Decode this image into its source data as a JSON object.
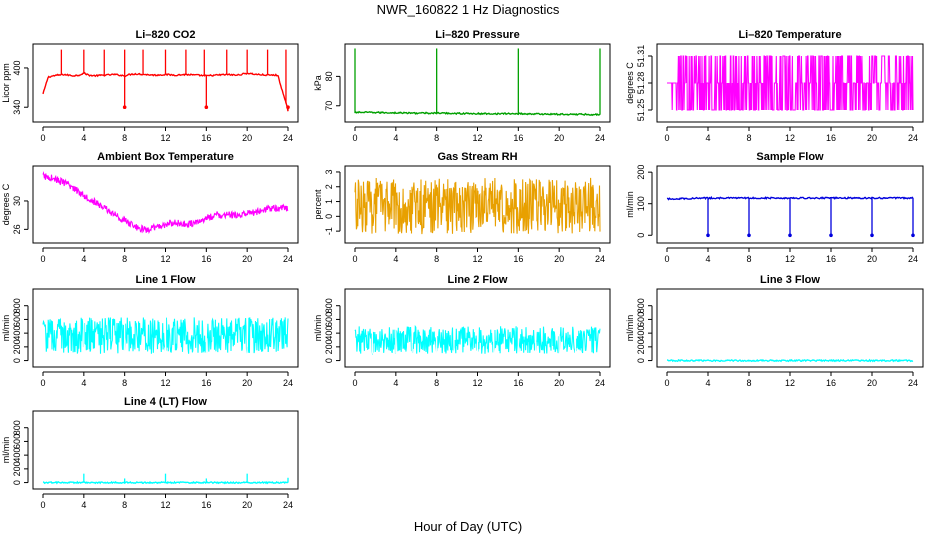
{
  "figure": {
    "title": "NWR_160822  1 Hz Diagnostics",
    "xlabel": "Hour of Day (UTC)"
  },
  "chart_data": [
    {
      "type": "line",
      "title": "Li–820 CO2",
      "ylabel": "Licor ppm",
      "color": "#ff0000",
      "xlim": [
        0,
        24
      ],
      "ylim": [
        322,
        432
      ],
      "xticks": [
        0,
        4,
        8,
        12,
        16,
        20,
        24
      ],
      "yticks": [
        340,
        400
      ],
      "x": [
        0,
        0.5,
        1,
        1.5,
        2,
        2.5,
        3,
        3.5,
        4,
        4.5,
        5,
        6,
        7,
        8,
        8.5,
        9,
        10,
        11,
        12,
        13,
        14,
        15,
        16,
        17,
        18,
        19,
        20,
        21,
        22,
        23,
        24
      ],
      "y": [
        360,
        386,
        388,
        389,
        390,
        389,
        388,
        389,
        392,
        389,
        388,
        389,
        390,
        388,
        390,
        391,
        390,
        389,
        390,
        389,
        390,
        389,
        388,
        389,
        390,
        389,
        392,
        390,
        389,
        389,
        335
      ],
      "spikes_up_x": [
        1.8,
        4,
        6,
        8,
        9.8,
        12,
        14,
        15.8,
        18,
        20,
        22,
        23.8
      ],
      "spikes_down_x": [
        8,
        16,
        24
      ],
      "spike_high": 428,
      "spike_low": 340
    },
    {
      "type": "line",
      "title": "Li–820 Pressure",
      "ylabel": "kPa",
      "color": "#00a000",
      "xlim": [
        0,
        24
      ],
      "ylim": [
        65.5,
        90
      ],
      "xticks": [
        0,
        4,
        8,
        12,
        16,
        20,
        24
      ],
      "yticks": [
        70,
        80
      ],
      "x": [
        0,
        0.2,
        2,
        4,
        6,
        8,
        10,
        12,
        14,
        16,
        18,
        20,
        22,
        24
      ],
      "y": [
        67.5,
        67.8,
        67.7,
        67.6,
        67.5,
        67.5,
        67.4,
        67.3,
        67.3,
        67.3,
        67.2,
        67.1,
        67.1,
        67.0
      ],
      "spikes_up_x": [
        0,
        8,
        16,
        24
      ],
      "spike_high": 89.5
    },
    {
      "type": "band",
      "title": "Li–820 Temperature",
      "ylabel": "degrees C",
      "color": "#ff00ff",
      "xlim": [
        0,
        24
      ],
      "ylim": [
        51.24,
        51.32
      ],
      "xticks": [
        0,
        4,
        8,
        12,
        16,
        20,
        24
      ],
      "yticks": [
        51.25,
        51.28,
        51.31
      ],
      "band_low": 51.25,
      "band_high": 51.31,
      "band_mid": 51.28
    },
    {
      "type": "band",
      "title": "Ambient Box Temperature",
      "ylabel": "degrees C",
      "color": "#ff00ff",
      "xlim": [
        0,
        24
      ],
      "ylim": [
        24.5,
        34.5
      ],
      "xticks": [
        0,
        4,
        8,
        12,
        16,
        20,
        24
      ],
      "yticks": [
        26,
        30
      ],
      "x": [
        0,
        1,
        2,
        3,
        4,
        5,
        6,
        7,
        8,
        9,
        10,
        11,
        12,
        13,
        14,
        15,
        16,
        17,
        18,
        19,
        20,
        21,
        22,
        23,
        24
      ],
      "y": [
        33.5,
        33.2,
        32.6,
        31.8,
        30.8,
        29.9,
        29.0,
        28.1,
        27.2,
        26.4,
        25.9,
        26.2,
        26.7,
        26.9,
        26.7,
        26.9,
        27.6,
        28.0,
        28.0,
        28.0,
        28.2,
        28.5,
        28.9,
        29.0,
        29.0
      ],
      "band_half_width": 0.5
    },
    {
      "type": "band",
      "title": "Gas Stream RH",
      "ylabel": "percent",
      "color": "#e8a000",
      "xlim": [
        0,
        24
      ],
      "ylim": [
        -1.6,
        3.2
      ],
      "xticks": [
        0,
        4,
        8,
        12,
        16,
        20,
        24
      ],
      "yticks": [
        -1,
        0,
        1,
        2,
        3
      ],
      "band_low": -1.2,
      "band_high": 2.6
    },
    {
      "type": "line",
      "title": "Sample Flow",
      "ylabel": "ml/min",
      "color": "#0000dd",
      "xlim": [
        0,
        24
      ],
      "ylim": [
        -15,
        210
      ],
      "xticks": [
        0,
        4,
        8,
        12,
        16,
        20,
        24
      ],
      "yticks": [
        0,
        100,
        200
      ],
      "x": [
        0,
        4,
        8,
        12,
        16,
        20,
        24
      ],
      "y": [
        115,
        118,
        118,
        118,
        118,
        118,
        118
      ],
      "spikes_down_x": [
        4,
        8,
        12,
        16,
        20,
        24
      ],
      "spike_low": 0
    },
    {
      "type": "band",
      "title": "Line 1 Flow",
      "ylabel": "ml/min",
      "color": "#00ffff",
      "xlim": [
        0,
        24
      ],
      "ylim": [
        -50,
        1000
      ],
      "xticks": [
        0,
        4,
        8,
        12,
        16,
        20,
        24
      ],
      "yticks": [
        0,
        200,
        400,
        600,
        800
      ],
      "band_low": 100,
      "band_high": 630,
      "gaps_x": [
        4,
        8,
        12,
        16,
        20
      ]
    },
    {
      "type": "band",
      "title": "Line 2 Flow",
      "ylabel": "ml/min",
      "color": "#00ffff",
      "xlim": [
        0,
        24
      ],
      "ylim": [
        -50,
        1000
      ],
      "xticks": [
        0,
        4,
        8,
        12,
        16,
        20,
        24
      ],
      "yticks": [
        0,
        200,
        400,
        600,
        800
      ],
      "band_low": 100,
      "band_high": 500,
      "gaps_x": [
        1.7,
        4,
        5.6,
        8,
        9.7,
        12,
        13.6,
        16,
        17.7,
        20,
        21.6
      ]
    },
    {
      "type": "line",
      "title": "Line 3 Flow",
      "ylabel": "ml/min",
      "color": "#00ffff",
      "xlim": [
        0,
        24
      ],
      "ylim": [
        -50,
        1000
      ],
      "xticks": [
        0,
        4,
        8,
        12,
        16,
        20,
        24
      ],
      "yticks": [
        0,
        200,
        400,
        600,
        800
      ],
      "x": [
        0,
        24
      ],
      "y": [
        0,
        0
      ]
    },
    {
      "type": "line",
      "title": "Line 4 (LT) Flow",
      "ylabel": "ml/min",
      "color": "#00ffff",
      "xlim": [
        0,
        24
      ],
      "ylim": [
        -50,
        1000
      ],
      "xticks": [
        0,
        4,
        8,
        12,
        16,
        20,
        24
      ],
      "yticks": [
        0,
        200,
        400,
        600,
        800
      ],
      "x": [
        0,
        24
      ],
      "y": [
        0,
        0
      ],
      "spikes_up_x": [
        4,
        8,
        12,
        16,
        20,
        24
      ],
      "spike_heights": [
        130,
        60,
        130,
        60,
        130,
        70
      ]
    }
  ]
}
